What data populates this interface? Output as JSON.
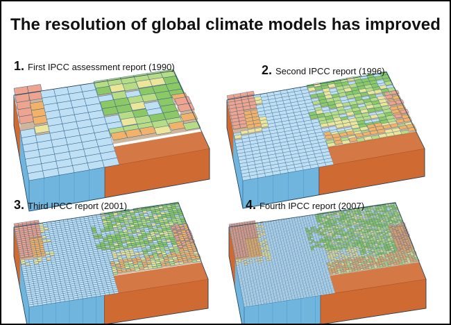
{
  "title": "The resolution of global climate models has improved",
  "panels": [
    {
      "number": "1.",
      "label": "First IPCC assessment report (1990)",
      "grid_cells": 12
    },
    {
      "number": "2.",
      "label": "Second IPCC report (1996)",
      "grid_cells": 24
    },
    {
      "number": "3.",
      "label": "Third IPCC report (2001)",
      "grid_cells": 40
    },
    {
      "number": "4.",
      "label": "Fourth IPCC report (2007)",
      "grid_cells": 64
    }
  ],
  "colors": {
    "ocean_top": "#bfe0f4",
    "ocean_deep": "#6fb5de",
    "ocean_edge": "#3a8fcc",
    "land_green": "#8cc865",
    "land_light": "#b8dc86",
    "land_yellow": "#ece59a",
    "land_orange": "#f2b26a",
    "land_pink": "#eea48e",
    "earth_side": "#cf6a32",
    "grid_line": "#2a5f8a",
    "border": "#000000"
  }
}
